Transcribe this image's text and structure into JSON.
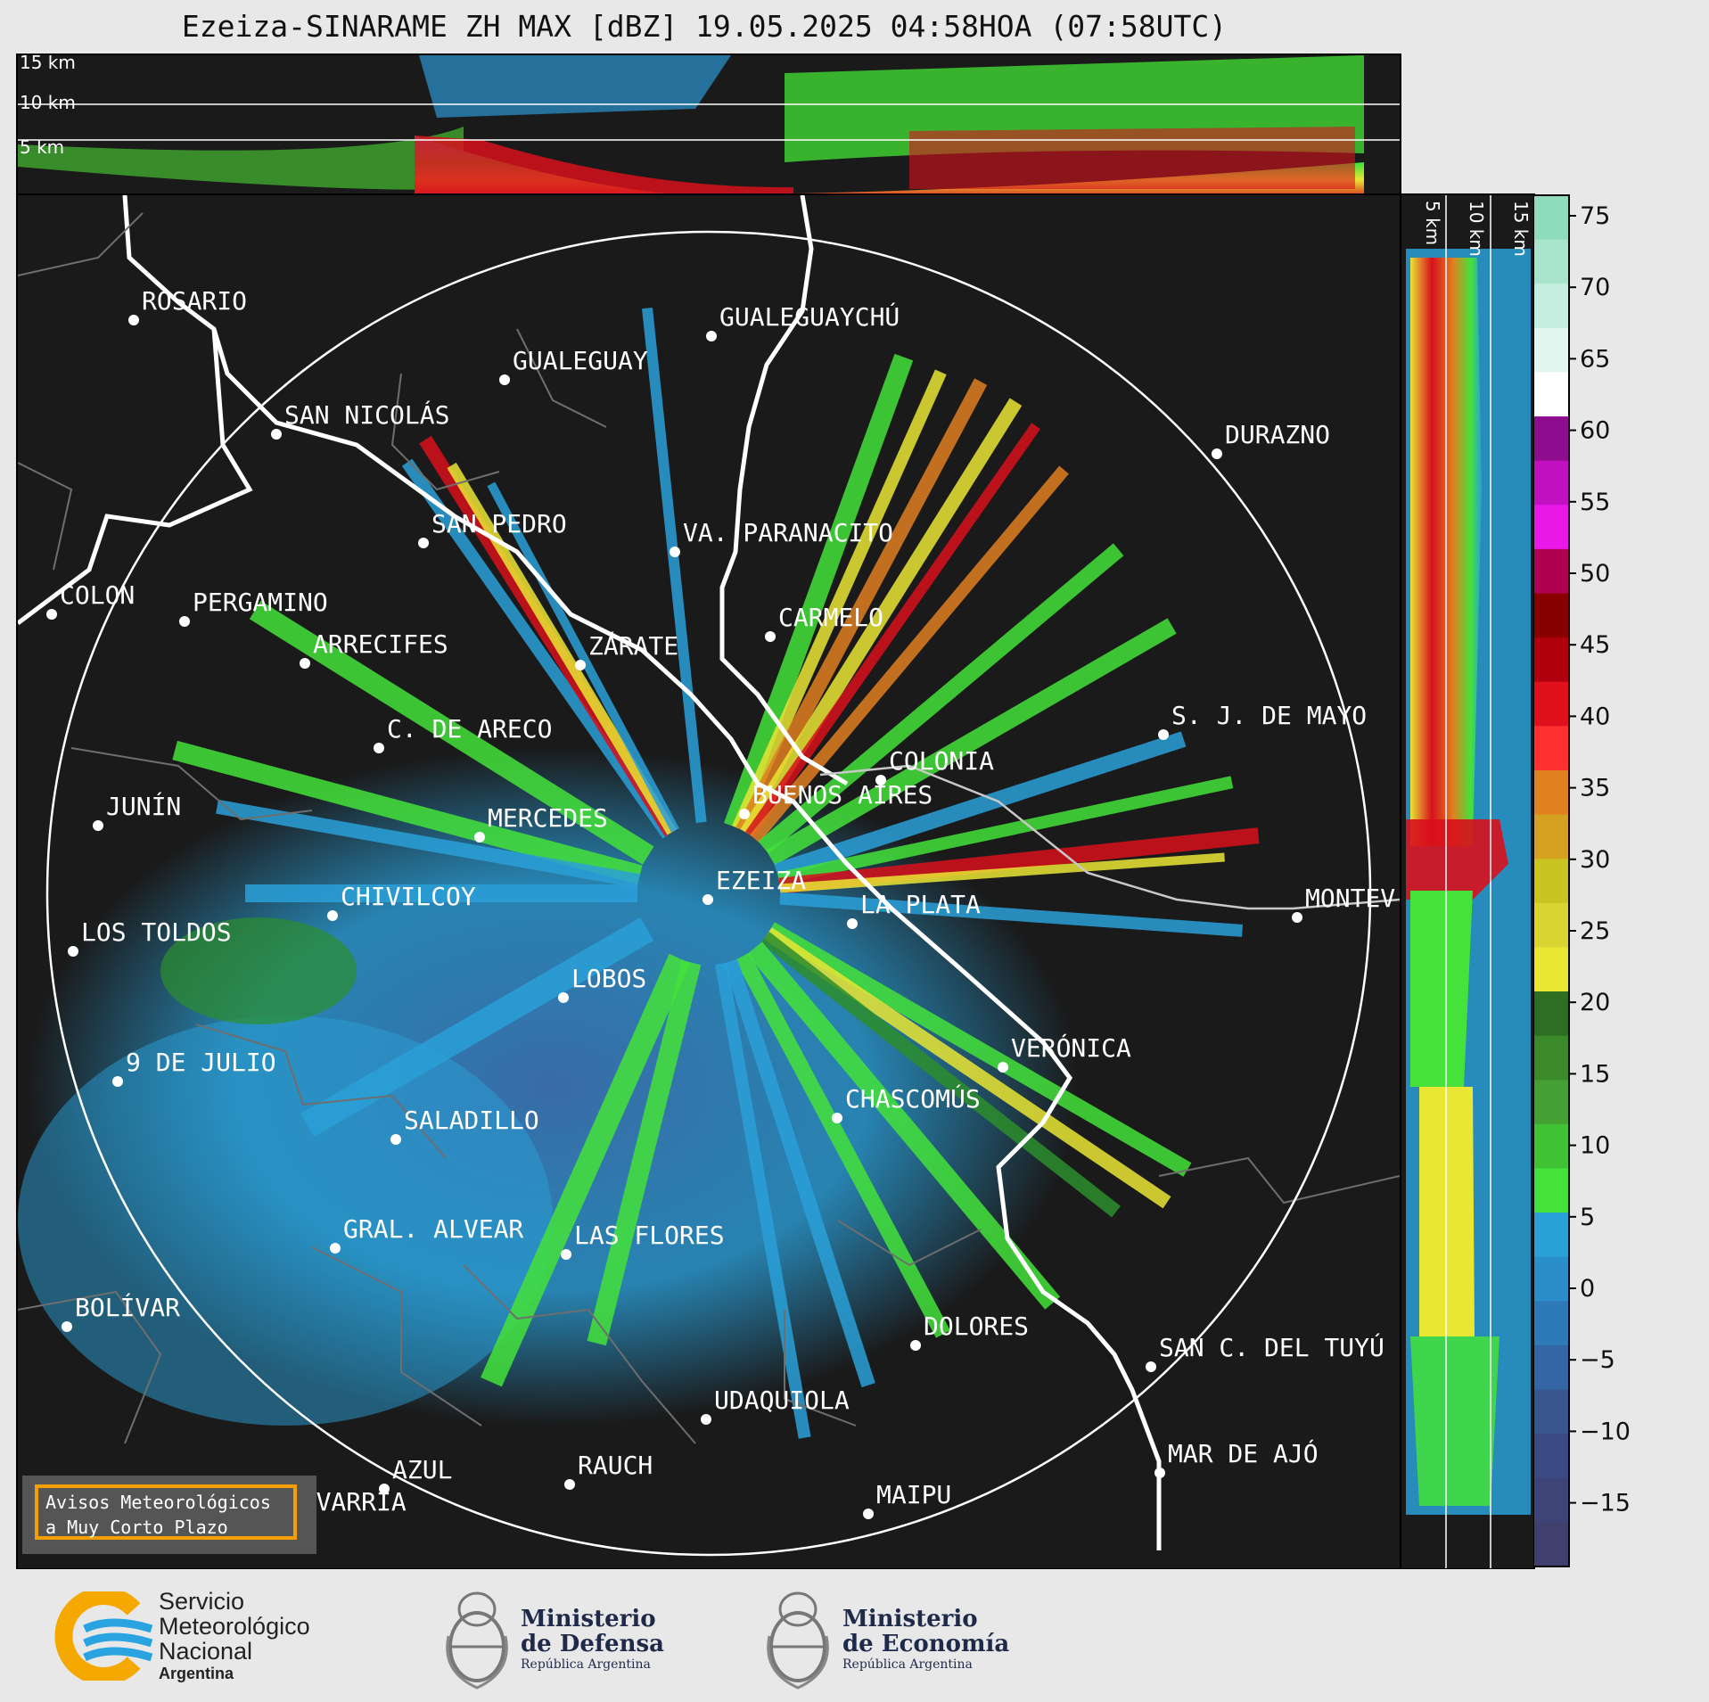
{
  "title": "Ezeiza-SINARAME ZH MAX [dBZ] 19.05.2025 04:58HOA (07:58UTC)",
  "height_levels": [
    "15 km",
    "10 km",
    "5 km"
  ],
  "side_levels": [
    "5 km",
    "10 km",
    "15 km"
  ],
  "colorbar": {
    "ticks": [
      "75",
      "70",
      "65",
      "60",
      "55",
      "50",
      "45",
      "40",
      "35",
      "30",
      "25",
      "20",
      "15",
      "10",
      "5",
      "0",
      "−5",
      "−10",
      "−15"
    ]
  },
  "cities": [
    {
      "name": "ROSARIO"
    },
    {
      "name": "GUALEGUAYCHÚ"
    },
    {
      "name": "GUALEGUAY"
    },
    {
      "name": "SAN NICOLÁS"
    },
    {
      "name": "DURAZNO"
    },
    {
      "name": "SAN PEDRO"
    },
    {
      "name": "VA. PARANACITO"
    },
    {
      "name": "COLON"
    },
    {
      "name": "PERGAMINO"
    },
    {
      "name": "CARMELO"
    },
    {
      "name": "ARRECIFES"
    },
    {
      "name": "ZÁRATE"
    },
    {
      "name": "S. J. DE MAYO"
    },
    {
      "name": "C. DE ARECO"
    },
    {
      "name": "COLONIA"
    },
    {
      "name": "JUNÍN"
    },
    {
      "name": "MERCEDES"
    },
    {
      "name": "BUENOS AIRES"
    },
    {
      "name": "EZEIZA"
    },
    {
      "name": "MONTEV"
    },
    {
      "name": "CHIVILCOY"
    },
    {
      "name": "LA PLATA"
    },
    {
      "name": "LOS TOLDOS"
    },
    {
      "name": "LOBOS"
    },
    {
      "name": "VERÓNICA"
    },
    {
      "name": "9 DE JULIO"
    },
    {
      "name": "CHASCOMÚS"
    },
    {
      "name": "SALADILLO"
    },
    {
      "name": "GRAL. ALVEAR"
    },
    {
      "name": "LAS FLORES"
    },
    {
      "name": "BOLÍVAR"
    },
    {
      "name": "DOLORES"
    },
    {
      "name": "SAN C. DEL TUYÚ"
    },
    {
      "name": "UDAQUIOLA"
    },
    {
      "name": "MAR DE AJÓ"
    },
    {
      "name": "RAUCH"
    },
    {
      "name": "AZUL"
    },
    {
      "name": "OLAVARRÍA"
    },
    {
      "name": "MAIPU"
    }
  ],
  "warning": {
    "line1": "Avisos Meteorológicos",
    "line2": "a Muy Corto Plazo"
  },
  "footer": {
    "smn": [
      "Servicio",
      "Meteorológico",
      "Nacional",
      "Argentina"
    ],
    "defensa": [
      "Ministerio",
      "de Defensa",
      "República Argentina"
    ],
    "economia": [
      "Ministerio",
      "de Economía",
      "República Argentina"
    ]
  },
  "colors": {
    "background": "#1a1a1a",
    "accent": "#f5a000",
    "smn_blue": "#2aa4e0",
    "smn_yellow": "#f5a800"
  }
}
